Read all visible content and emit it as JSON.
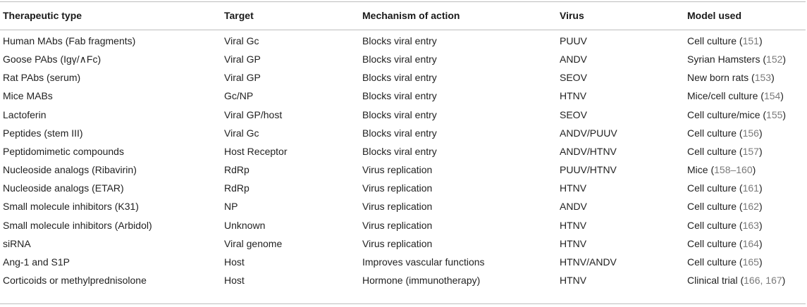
{
  "table": {
    "headers": [
      "Therapeutic type",
      "Target",
      "Mechanism of action",
      "Virus",
      "Model used"
    ],
    "rows": [
      {
        "type": "Human MAbs (Fab fragments)",
        "target": "Viral Gc",
        "mechanism": "Blocks viral entry",
        "virus": "PUUV",
        "model": "Cell culture",
        "ref": "151"
      },
      {
        "type": "Goose PAbs (Igγ/∧Fc)",
        "target": "Viral GP",
        "mechanism": "Blocks viral entry",
        "virus": "ANDV",
        "model": "Syrian Hamsters",
        "ref": "152"
      },
      {
        "type": "Rat PAbs (serum)",
        "target": "Viral GP",
        "mechanism": "Blocks viral entry",
        "virus": "SEOV",
        "model": "New born rats",
        "ref": "153"
      },
      {
        "type": "Mice MABs",
        "target": "Gc/NP",
        "mechanism": "Blocks viral entry",
        "virus": "HTNV",
        "model": "Mice/cell culture",
        "ref": "154"
      },
      {
        "type": "Lactoferin",
        "target": "Viral GP/host",
        "mechanism": "Blocks viral entry",
        "virus": "SEOV",
        "model": "Cell culture/mice",
        "ref": "155"
      },
      {
        "type": "Peptides (stem III)",
        "target": "Viral Gc",
        "mechanism": "Blocks viral entry",
        "virus": "ANDV/PUUV",
        "model": "Cell culture",
        "ref": "156"
      },
      {
        "type": "Peptidomimetic compounds",
        "target": "Host Receptor",
        "mechanism": "Blocks viral entry",
        "virus": "ANDV/HTNV",
        "model": "Cell culture",
        "ref": "157"
      },
      {
        "type": "Nucleoside analogs (Ribavirin)",
        "target": "RdRp",
        "mechanism": "Virus replication",
        "virus": "PUUV/HTNV",
        "model": "Mice",
        "ref": "158–160"
      },
      {
        "type": "Nucleoside analogs (ETAR)",
        "target": "RdRp",
        "mechanism": "Virus replication",
        "virus": "HTNV",
        "model": "Cell culture",
        "ref": "161"
      },
      {
        "type": "Small molecule inhibitors (K31)",
        "target": "NP",
        "mechanism": "Virus replication",
        "virus": "ANDV",
        "model": "Cell culture",
        "ref": "162"
      },
      {
        "type": "Small molecule inhibitors (Arbidol)",
        "target": "Unknown",
        "mechanism": "Virus replication",
        "virus": "HTNV",
        "model": "Cell culture",
        "ref": "163"
      },
      {
        "type": "siRNA",
        "target": "Viral genome",
        "mechanism": "Virus replication",
        "virus": "HTNV",
        "model": "Cell culture",
        "ref": "164"
      },
      {
        "type": "Ang-1 and S1P",
        "target": "Host",
        "mechanism": "Improves vascular functions",
        "virus": "HTNV/ANDV",
        "model": "Cell culture",
        "ref": "165"
      },
      {
        "type": "Corticoids or methylprednisolone",
        "target": "Host",
        "mechanism": "Hormone (immunotherapy)",
        "virus": "HTNV",
        "model": "Clinical trial",
        "ref": "166, 167"
      }
    ]
  }
}
